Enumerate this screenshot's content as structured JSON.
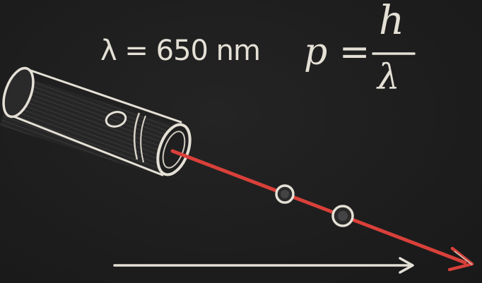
{
  "equations": {
    "wavelength": "λ = 650 nm",
    "momentum_lhs": "p =",
    "momentum_numerator": "h",
    "momentum_denominator": "λ"
  },
  "icons": {
    "laser": "laser-pointer-icon",
    "beam": "laser-beam",
    "photons": "photon-dot",
    "direction": "direction-arrow-icon"
  },
  "colors": {
    "board": "#1e1e1e",
    "chalk": "#e4e0d6",
    "beam": "#d9403a"
  }
}
